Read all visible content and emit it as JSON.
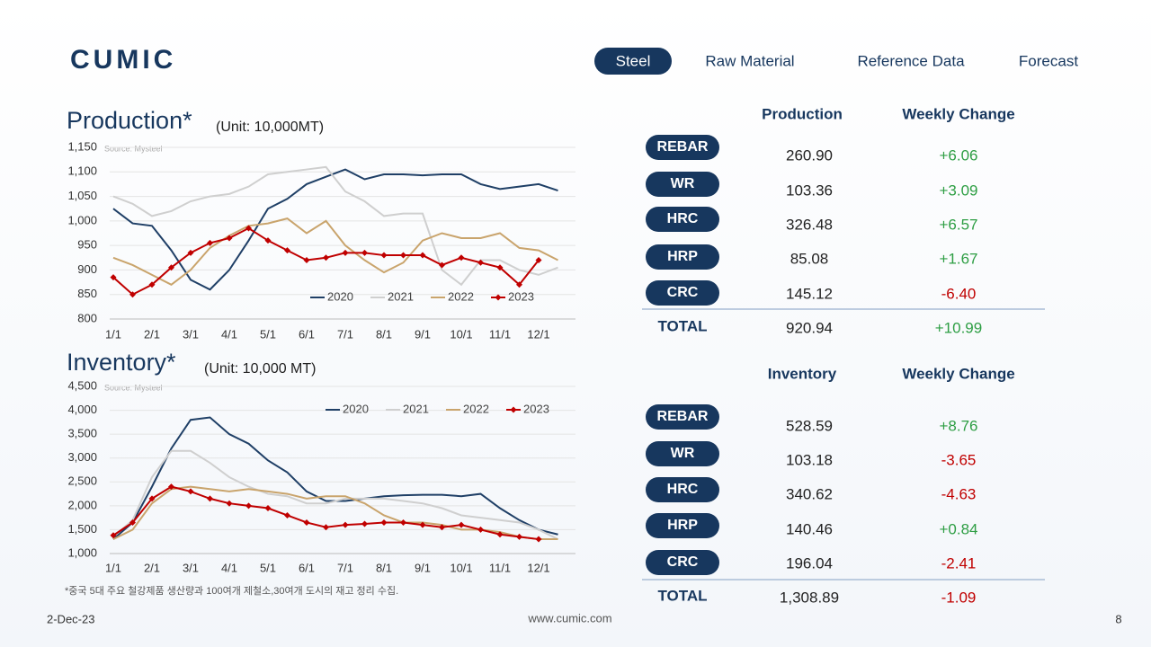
{
  "header": {
    "logo": "CUMIC",
    "nav": [
      "Steel",
      "Raw Material",
      "Reference Data",
      "Forecast"
    ],
    "active": 0
  },
  "chart_data": [
    {
      "type": "line",
      "title": "Production*",
      "subtitle": "(Unit: 10,000MT)",
      "source": "Source: Mysteel",
      "categories": [
        "1/1",
        null,
        "2/1",
        null,
        "3/1",
        null,
        "4/1",
        null,
        "5/1",
        null,
        "6/1",
        null,
        "7/1",
        null,
        "8/1",
        null,
        "9/1",
        null,
        "10/1",
        null,
        "11/1",
        null,
        "12/1",
        null
      ],
      "ylim": [
        800,
        1150
      ],
      "yticks": [
        800,
        850,
        900,
        950,
        {
          "value": 1000,
          "label": "1,000"
        },
        {
          "value": 1050,
          "label": "1,050"
        },
        {
          "value": 1100,
          "label": "1,100"
        },
        {
          "value": 1150,
          "label": "1,150"
        }
      ],
      "legend": "bottom",
      "series": [
        {
          "name": "2020",
          "color": "#1f3f66",
          "values": [
            1025,
            995,
            990,
            940,
            880,
            860,
            900,
            960,
            1025,
            1045,
            1075,
            1090,
            1105,
            1085,
            1095,
            1095,
            1093,
            1095,
            1095,
            1075,
            1065,
            1070,
            1075,
            1062
          ]
        },
        {
          "name": "2021",
          "color": "#cfcfcf",
          "values": [
            1050,
            1035,
            1010,
            1020,
            1040,
            1050,
            1055,
            1070,
            1095,
            1100,
            1105,
            1110,
            1060,
            1040,
            1010,
            1015,
            1015,
            900,
            870,
            920,
            920,
            900,
            890,
            905
          ]
        },
        {
          "name": "2022",
          "color": "#c9a46c",
          "values": [
            925,
            910,
            890,
            870,
            900,
            945,
            970,
            990,
            995,
            1005,
            975,
            1000,
            950,
            920,
            895,
            915,
            960,
            975,
            965,
            965,
            975,
            945,
            940,
            920
          ]
        },
        {
          "name": "2023",
          "color": "#c00000",
          "marker": "diamond",
          "values": [
            885,
            850,
            870,
            905,
            935,
            955,
            965,
            985,
            960,
            940,
            920,
            925,
            935,
            935,
            930,
            930,
            930,
            910,
            925,
            915,
            905,
            870,
            920,
            null
          ]
        }
      ]
    },
    {
      "type": "line",
      "title": "Inventory*",
      "subtitle": "(Unit: 10,000 MT)",
      "source": "Source: Mysteel",
      "categories": [
        "1/1",
        null,
        "2/1",
        null,
        "3/1",
        null,
        "4/1",
        null,
        "5/1",
        null,
        "6/1",
        null,
        "7/1",
        null,
        "8/1",
        null,
        "9/1",
        null,
        "10/1",
        null,
        "11/1",
        null,
        "12/1",
        null
      ],
      "ylim": [
        1000,
        4500
      ],
      "yticks": [
        {
          "value": 1000,
          "label": "1,000"
        },
        {
          "value": 1500,
          "label": "1,500"
        },
        {
          "value": 2000,
          "label": "2,000"
        },
        {
          "value": 2500,
          "label": "2,500"
        },
        {
          "value": 3000,
          "label": "3,000"
        },
        {
          "value": 3500,
          "label": "3,500"
        },
        {
          "value": 4000,
          "label": "4,000"
        },
        {
          "value": 4500,
          "label": "4,500"
        }
      ],
      "legend": "top",
      "series": [
        {
          "name": "2020",
          "color": "#1f3f66",
          "values": [
            1300,
            1650,
            2400,
            3200,
            3800,
            3850,
            3500,
            3300,
            2950,
            2700,
            2300,
            2100,
            2100,
            2150,
            2200,
            2220,
            2230,
            2230,
            2200,
            2250,
            1950,
            1700,
            1500,
            1400
          ]
        },
        {
          "name": "2021",
          "color": "#cfcfcf",
          "values": [
            1350,
            1700,
            2600,
            3150,
            3150,
            2900,
            2600,
            2400,
            2250,
            2200,
            2050,
            2050,
            2150,
            2150,
            2150,
            2100,
            2050,
            1950,
            1800,
            1750,
            1700,
            1650,
            1500,
            1300
          ]
        },
        {
          "name": "2022",
          "color": "#c9a46c",
          "values": [
            1300,
            1500,
            2050,
            2350,
            2400,
            2350,
            2300,
            2350,
            2300,
            2250,
            2150,
            2200,
            2200,
            2050,
            1800,
            1650,
            1650,
            1600,
            1500,
            1500,
            1450,
            1350,
            1300,
            1300
          ]
        },
        {
          "name": "2023",
          "color": "#c00000",
          "marker": "diamond",
          "values": [
            1380,
            1650,
            2150,
            2400,
            2300,
            2150,
            2050,
            2000,
            1950,
            1800,
            1650,
            1550,
            1600,
            1620,
            1650,
            1650,
            1600,
            1550,
            1600,
            1500,
            1400,
            1350,
            1300,
            null
          ]
        }
      ]
    }
  ],
  "note": "*중국 5대 주요 철강제품 생산량과 100여개 제철소,30여개 도시의 재고 정리 수집.",
  "tables": [
    {
      "headers": [
        "Production",
        "Weekly Change"
      ],
      "rows": [
        [
          "REBAR",
          "260.90",
          "+6.06"
        ],
        [
          "WR",
          "103.36",
          "+3.09"
        ],
        [
          "HRC",
          "326.48",
          "+6.57"
        ],
        [
          "HRP",
          "85.08",
          "+1.67"
        ],
        [
          "CRC",
          "145.12",
          "-6.40"
        ]
      ],
      "total": [
        "TOTAL",
        "920.94",
        "+10.99"
      ]
    },
    {
      "headers": [
        "Inventory",
        "Weekly Change"
      ],
      "rows": [
        [
          "REBAR",
          "528.59",
          "+8.76"
        ],
        [
          "WR",
          "103.18",
          "-3.65"
        ],
        [
          "HRC",
          "340.62",
          "-4.63"
        ],
        [
          "HRP",
          "140.46",
          "+0.84"
        ],
        [
          "CRC",
          "196.04",
          "-2.41"
        ]
      ],
      "total": [
        "TOTAL",
        "1,308.89",
        "-1.09"
      ]
    }
  ],
  "footer": {
    "date": "2-Dec-23",
    "url": "www.cumic.com",
    "page": "8"
  }
}
